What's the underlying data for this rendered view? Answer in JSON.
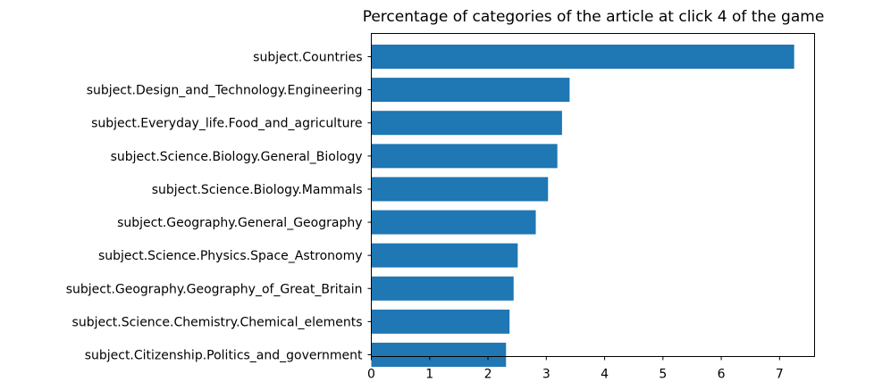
{
  "chart_data": {
    "type": "bar",
    "orientation": "horizontal",
    "title": "Percentage of categories of the article at click 4 of the game",
    "xlabel": "",
    "ylabel": "",
    "categories": [
      "subject.Countries",
      "subject.Design_and_Technology.Engineering",
      "subject.Everyday_life.Food_and_agriculture",
      "subject.Science.Biology.General_Biology",
      "subject.Science.Biology.Mammals",
      "subject.Geography.General_Geography",
      "subject.Science.Physics.Space_Astronomy",
      "subject.Geography.Geography_of_Great_Britain",
      "subject.Science.Chemistry.Chemical_elements",
      "subject.Citizenship.Politics_and_government"
    ],
    "values": [
      7.25,
      3.4,
      3.27,
      3.19,
      3.03,
      2.82,
      2.51,
      2.44,
      2.37,
      2.31
    ],
    "xlim": [
      0,
      7.6
    ],
    "xticks": [
      0,
      1,
      2,
      3,
      4,
      5,
      6,
      7
    ],
    "grid": false,
    "colors": {
      "bar": "#1f77b4",
      "axis": "#000000",
      "text": "#000000"
    }
  }
}
